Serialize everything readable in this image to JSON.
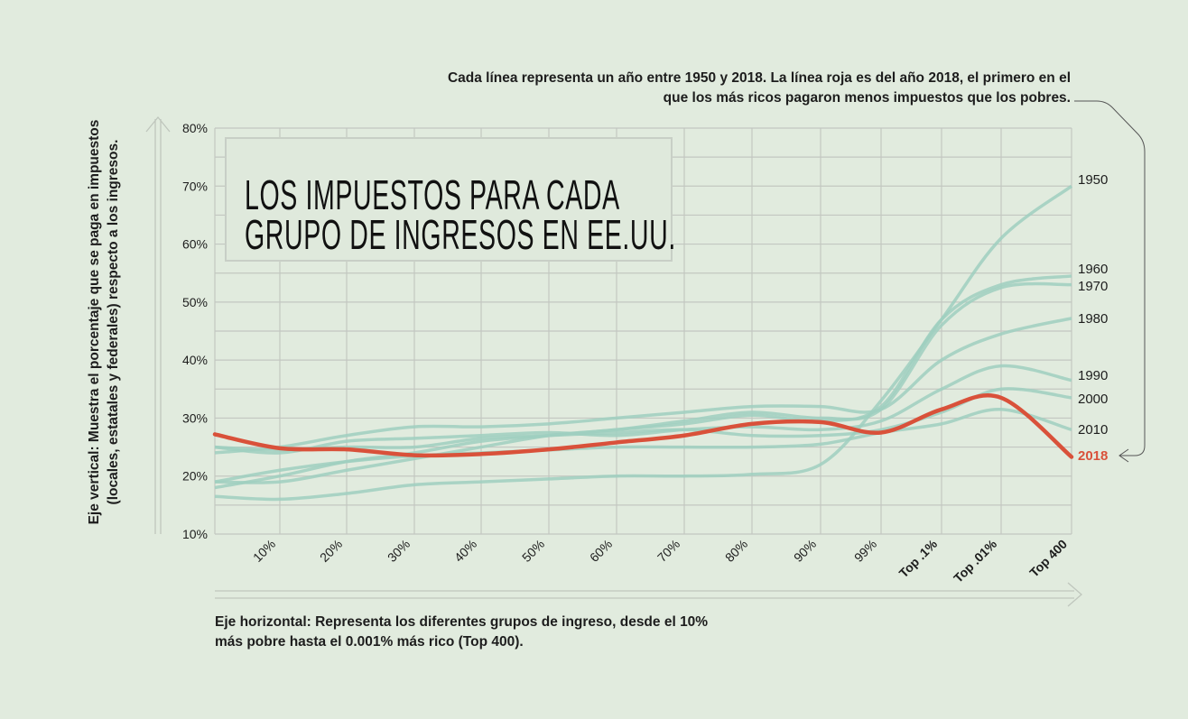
{
  "chart_data": {
    "type": "line",
    "title": "LOS IMPUESTOS PARA CADA GRUPO DE INGRESOS EN EE.UU.",
    "title_lines": [
      "LOS IMPUESTOS PARA CADA",
      "GRUPO DE INGRESOS EN EE.UU."
    ],
    "annotation_top": "Cada línea representa un año entre 1950 y 2018. La línea roja es del año 2018, el primero en el que los más ricos pagaron menos impuestos que los pobres.",
    "ylabel": "Eje vertical: Muestra el porcentaje que se paga en impuestos (locales, estatales y federales) respecto a los ingresos.",
    "xlabel": "Eje horizontal: Representa los diferentes grupos de ingreso, desde el 10% más pobre hasta el 0.001% más rico (Top 400).",
    "ylim": [
      10,
      80
    ],
    "yticks": [
      "10%",
      "20%",
      "30%",
      "40%",
      "50%",
      "60%",
      "70%",
      "80%"
    ],
    "ytick_values": [
      10,
      20,
      30,
      40,
      50,
      60,
      70,
      80
    ],
    "categories": [
      "",
      "10%",
      "20%",
      "30%",
      "40%",
      "50%",
      "60%",
      "70%",
      "80%",
      "90%",
      "99%",
      "Top .1%",
      "Top .01%",
      "Top 400"
    ],
    "grid": true,
    "colors": {
      "years": "#9fcfbf",
      "highlight": "#d9513a",
      "grid": "#c3c7c1",
      "text": "#1d1d1d"
    },
    "series": [
      {
        "name": "1950",
        "values": [
          16.5,
          16,
          17,
          18.5,
          19,
          19.5,
          20,
          20,
          20.3,
          22,
          33,
          47,
          61,
          70
        ]
      },
      {
        "name": "1960",
        "values": [
          18,
          20,
          22.5,
          24,
          26,
          27,
          28,
          29,
          30.5,
          29.5,
          32,
          47,
          53,
          54.5
        ]
      },
      {
        "name": "1970",
        "values": [
          19,
          19,
          21,
          23,
          25,
          27,
          28,
          29.5,
          31,
          30,
          31.5,
          46,
          52.5,
          53
        ]
      },
      {
        "name": "1980",
        "values": [
          24,
          25,
          27,
          28.5,
          28.5,
          29,
          30,
          31,
          32,
          32,
          31.5,
          40,
          44.5,
          47.2
        ]
      },
      {
        "name": "1990",
        "values": [
          25,
          24,
          26,
          26.5,
          27,
          27.5,
          27,
          28,
          28.5,
          28,
          29.5,
          35,
          39,
          36.5
        ]
      },
      {
        "name": "2000",
        "values": [
          25,
          24.5,
          25,
          25,
          26.5,
          27,
          27.5,
          28,
          27,
          27,
          28,
          31,
          35,
          33.5
        ]
      },
      {
        "name": "2010",
        "values": [
          19,
          21,
          22.5,
          23.5,
          24,
          24.5,
          25,
          25,
          25,
          25.5,
          27.5,
          29,
          31.5,
          28
        ]
      },
      {
        "name": "2018",
        "highlight": true,
        "values": [
          27.2,
          24.8,
          24.6,
          23.6,
          23.8,
          24.6,
          25.8,
          27,
          29,
          29.3,
          27.5,
          31.5,
          33.5,
          23.3
        ]
      }
    ],
    "series_label_values": {
      "1950": 70,
      "1960": 55,
      "1970": 52,
      "1980": 47,
      "1990": 38,
      "2000": 34,
      "2010": 29,
      "2018": 24
    }
  }
}
